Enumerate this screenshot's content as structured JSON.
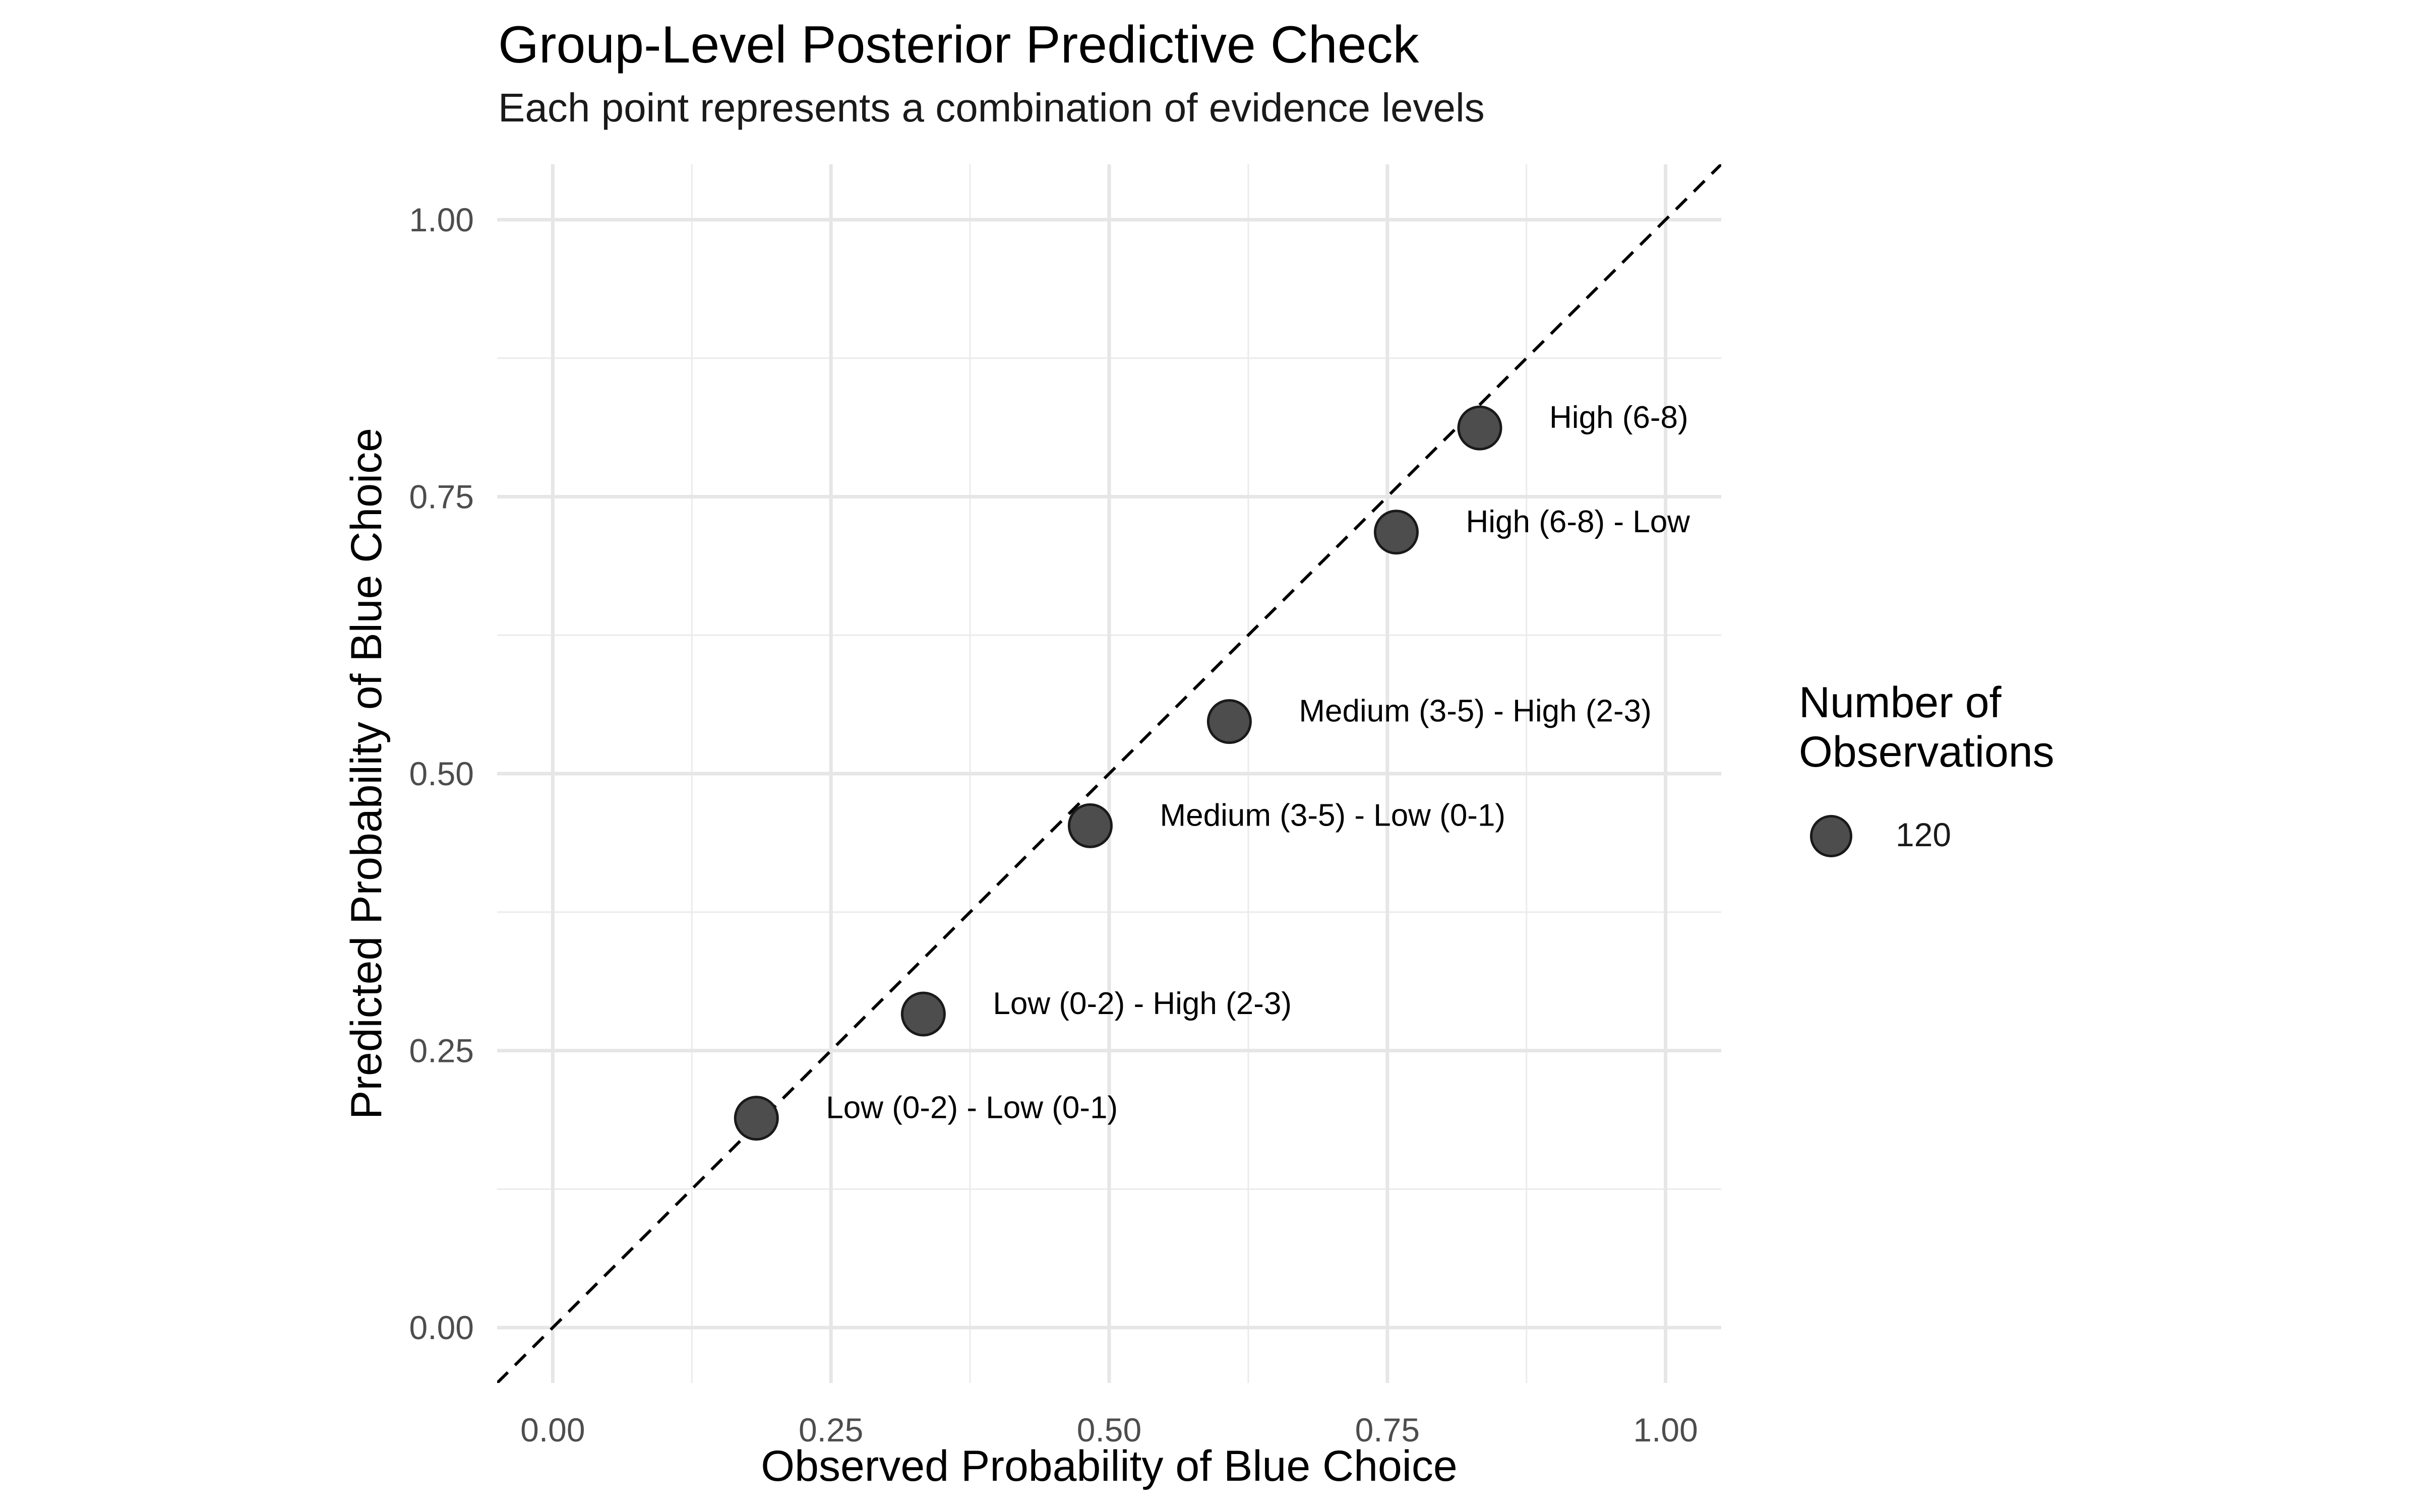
{
  "chart_data": {
    "type": "scatter",
    "title": "Group-Level Posterior Predictive Check",
    "subtitle": "Each point represents a combination of evidence levels",
    "xlabel": "Observed Probability of Blue Choice",
    "ylabel": "Predicted Probability of Blue Choice",
    "xlim": [
      -0.05,
      1.05
    ],
    "ylim": [
      -0.05,
      1.05
    ],
    "x_ticks": [
      "0.00",
      "0.25",
      "0.50",
      "0.75",
      "1.00"
    ],
    "y_ticks": [
      "0.00",
      "0.25",
      "0.50",
      "0.75",
      "1.00"
    ],
    "grid": true,
    "reference_line": {
      "slope": 1,
      "intercept": 0,
      "style": "dashed"
    },
    "legend": {
      "title": "Number of\nObservations",
      "position": "right",
      "entries": [
        "120"
      ]
    },
    "point_color": "#4d4d4d",
    "series": [
      {
        "points": [
          {
            "x": 0.183,
            "y": 0.189,
            "n": 120,
            "label": "Low (0-2) - Low (0-1)"
          },
          {
            "x": 0.333,
            "y": 0.283,
            "n": 120,
            "label": "Low (0-2) - High (2-3)"
          },
          {
            "x": 0.483,
            "y": 0.453,
            "n": 120,
            "label": "Medium (3-5) - Low (0-1)"
          },
          {
            "x": 0.608,
            "y": 0.547,
            "n": 120,
            "label": "Medium (3-5) - High (2-3)"
          },
          {
            "x": 0.758,
            "y": 0.718,
            "n": 120,
            "label": "High (6-8) - Low"
          },
          {
            "x": 0.833,
            "y": 0.812,
            "n": 120,
            "label": "High (6-8)"
          }
        ]
      }
    ]
  }
}
